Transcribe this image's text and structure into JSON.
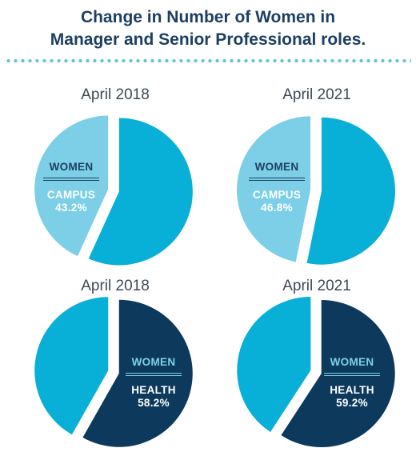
{
  "title_line1": "Change in Number of Women in",
  "title_line2": "Manager and Senior Professional roles.",
  "colors": {
    "title": "#1d3f63",
    "campus_women": "#7ccfe6",
    "campus_other": "#08afd6",
    "health_women": "#0d3a5c",
    "health_other": "#08afd6",
    "dots": "#5cc2dd"
  },
  "chart_data": [
    {
      "type": "pie",
      "title": "April 2018",
      "group": "CAMPUS",
      "women_label": "WOMEN",
      "slices": [
        {
          "label": "WOMEN",
          "value": 43.2
        },
        {
          "label": "",
          "value": 56.8
        }
      ],
      "women_pct_text": "43.2%"
    },
    {
      "type": "pie",
      "title": "April 2021",
      "group": "CAMPUS",
      "women_label": "WOMEN",
      "slices": [
        {
          "label": "WOMEN",
          "value": 46.8
        },
        {
          "label": "",
          "value": 53.2
        }
      ],
      "women_pct_text": "46.8%"
    },
    {
      "type": "pie",
      "title": "April 2018",
      "group": "HEALTH",
      "women_label": "WOMEN",
      "slices": [
        {
          "label": "WOMEN",
          "value": 58.2
        },
        {
          "label": "",
          "value": 41.8
        }
      ],
      "women_pct_text": "58.2%"
    },
    {
      "type": "pie",
      "title": "April 2021",
      "group": "HEALTH",
      "women_label": "WOMEN",
      "slices": [
        {
          "label": "WOMEN",
          "value": 59.2
        },
        {
          "label": "",
          "value": 40.8
        }
      ],
      "women_pct_text": "59.2%"
    }
  ]
}
